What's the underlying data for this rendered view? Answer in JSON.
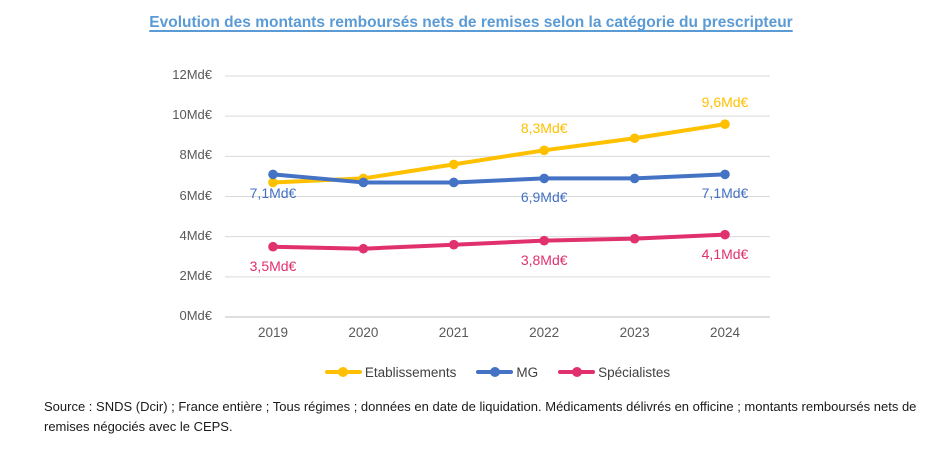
{
  "title": "Evolution des montants remboursés nets de remises selon la catégorie du prescripteur",
  "source_note": "Source : SNDS (Dcir) ; France entière ; Tous régimes ; données en date de liquidation. Médicaments délivrés en officine ; montants remboursés nets de remises négociés avec le CEPS.",
  "colors": {
    "title_blue": "#5B9BD5",
    "etablissements": "#FFC000",
    "mg": "#4472C4",
    "specialistes": "#E0306E",
    "gridline": "#D9D9D9",
    "axis_baseline": "#BFBFBF",
    "axis_text": "#595959",
    "legend_text": "#404040",
    "source_text": "#1A1A1A",
    "background": "#FFFFFF"
  },
  "chart_data": {
    "type": "line",
    "title": "Evolution des montants remboursés nets de remises selon la catégorie du prescripteur",
    "categories": [
      "2019",
      "2020",
      "2021",
      "2022",
      "2023",
      "2024"
    ],
    "unit": "Md€",
    "ylim": [
      0,
      12
    ],
    "grid": true,
    "legend_position": "bottom",
    "y_ticks": [
      {
        "value": 12,
        "label": "12Md€"
      },
      {
        "value": 10,
        "label": "10Md€"
      },
      {
        "value": 8,
        "label": "8Md€"
      },
      {
        "value": 6,
        "label": "6Md€"
      },
      {
        "value": 4,
        "label": "4Md€"
      },
      {
        "value": 2,
        "label": "2Md€"
      },
      {
        "value": 0,
        "label": "0Md€"
      }
    ],
    "series": [
      {
        "name": "Etablissements",
        "color": "#FFC000",
        "values": [
          6.7,
          6.9,
          7.6,
          8.3,
          8.9,
          9.6
        ],
        "point_labels": [
          "",
          "",
          "",
          "8,3Md€",
          "",
          "9,6Md€"
        ],
        "label_side": "above"
      },
      {
        "name": "MG",
        "color": "#4472C4",
        "values": [
          7.1,
          6.7,
          6.7,
          6.9,
          6.9,
          7.1
        ],
        "point_labels": [
          "7,1Md€",
          "",
          "",
          "6,9Md€",
          "",
          "7,1Md€"
        ],
        "label_side": "below"
      },
      {
        "name": "Spécialistes",
        "color": "#E0306E",
        "values": [
          3.5,
          3.4,
          3.6,
          3.8,
          3.9,
          4.1
        ],
        "point_labels": [
          "3,5Md€",
          "",
          "",
          "3,8Md€",
          "",
          "4,1Md€"
        ],
        "label_side": "below"
      }
    ]
  }
}
